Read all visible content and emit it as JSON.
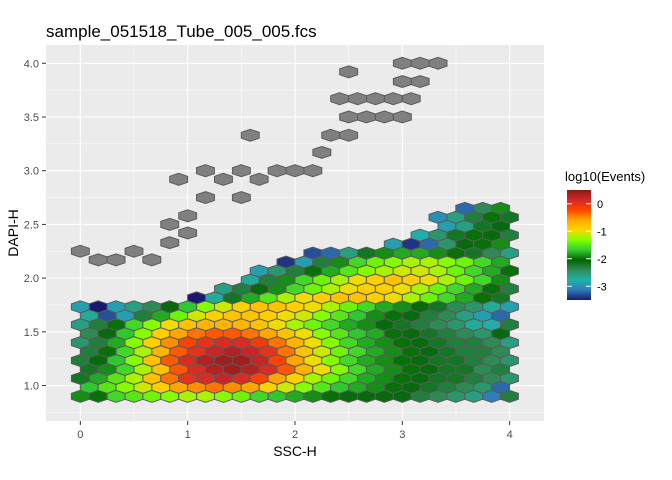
{
  "chart_data": {
    "type": "hexbin",
    "title": "sample_051518_Tube_005_005.fcs",
    "xlabel": "SSC-H",
    "ylabel": "DAPI-H",
    "xlim": [
      -0.32,
      4.32
    ],
    "ylim": [
      0.67,
      4.17
    ],
    "x_ticks": [
      0,
      1,
      2,
      3,
      4
    ],
    "x_tick_labels": [
      "0",
      "1",
      "2",
      "3",
      "4"
    ],
    "y_ticks": [
      1.0,
      1.5,
      2.0,
      2.5,
      3.0,
      3.5,
      4.0
    ],
    "y_tick_labels": [
      "1.0",
      "1.5",
      "2.0",
      "2.5",
      "3.0",
      "3.5",
      "4.0"
    ],
    "grid": true,
    "legend": {
      "title": "log10(Events)",
      "position": "right",
      "range": [
        -3.5,
        0.5
      ],
      "ticks": [
        0,
        -1,
        -2,
        -3
      ],
      "tick_labels": [
        "0",
        "-1",
        "-2",
        "-3"
      ],
      "colors": [
        "#191970",
        "#2e7bb8",
        "#20b2aa",
        "#2e8b57",
        "#006400",
        "#32cd32",
        "#7fff00",
        "#ffd700",
        "#ffa500",
        "#ff4500",
        "#d42828",
        "#8b1a1a"
      ],
      "below_range_color": "#808080"
    },
    "hex_grid": {
      "x0": 0.0,
      "dx": 0.1666,
      "y0": 0.9,
      "dy": 0.0833,
      "rows_note": "each row: r = row index (y = y0 + r*dy); odd rows offset by dx/2; values are log10(Events) per hexagon from the first column c0; null = outside range (grey)"
    },
    "rows": [
      {
        "r": 0,
        "c0": 0,
        "v": [
          -1.9,
          -2.0,
          -1.6,
          -1.5,
          -1.4,
          -1.3,
          -1.2,
          -1.2,
          -1.3,
          -1.4,
          -1.6,
          -1.7,
          -1.8,
          -1.9,
          -2.0,
          -2.1,
          -2.1,
          -2.1,
          -2.1,
          -2.3,
          -2.4,
          -2.5,
          -2.6,
          -3.1,
          -2.3
        ]
      },
      {
        "r": 1,
        "c0": 0,
        "v": [
          -1.7,
          -1.5,
          -1.3,
          -1.1,
          -0.9,
          -0.6,
          -0.5,
          -0.4,
          -0.5,
          -0.6,
          -0.9,
          -1.1,
          -1.3,
          -1.5,
          -1.7,
          -1.8,
          -1.9,
          -2.0,
          -2.1,
          -2.2,
          -2.3,
          -2.4,
          -2.5,
          -3.2
        ]
      },
      {
        "r": 2,
        "c0": 0,
        "v": [
          -2.2,
          -1.8,
          -1.5,
          -1.2,
          -0.8,
          -0.4,
          0.0,
          0.1,
          0.2,
          0.1,
          -0.2,
          -0.6,
          -0.9,
          -1.2,
          -1.4,
          -1.6,
          -1.8,
          -1.9,
          -2.0,
          -2.1,
          -2.2,
          -2.2,
          -2.3,
          -2.4,
          -2.5
        ]
      },
      {
        "r": 3,
        "c0": 0,
        "v": [
          -2.2,
          -1.9,
          -1.6,
          -1.2,
          -0.8,
          -0.3,
          0.1,
          0.3,
          0.4,
          0.3,
          0.1,
          -0.3,
          -0.7,
          -1.0,
          -1.3,
          -1.6,
          -1.8,
          -1.9,
          -2.0,
          -2.1,
          -2.2,
          -2.2,
          -2.4,
          -2.3
        ]
      },
      {
        "r": 4,
        "c0": 0,
        "v": [
          -2.3,
          -2.1,
          -1.7,
          -1.3,
          -0.8,
          -0.3,
          0.1,
          0.3,
          0.4,
          0.4,
          0.2,
          -0.2,
          -0.6,
          -1.0,
          -1.3,
          -1.6,
          -1.8,
          -1.9,
          -2.0,
          -2.1,
          -2.2,
          -2.2,
          -2.3,
          -2.4,
          -2.5
        ]
      },
      {
        "r": 5,
        "c0": 0,
        "v": [
          -2.3,
          -2.0,
          -1.6,
          -1.2,
          -0.7,
          -0.3,
          0.0,
          0.2,
          0.3,
          0.2,
          0.0,
          -0.4,
          -0.8,
          -1.1,
          -1.4,
          -1.6,
          -1.8,
          -1.9,
          -2.0,
          -2.1,
          -2.2,
          -2.3,
          -2.3,
          -2.4
        ]
      },
      {
        "r": 6,
        "c0": 0,
        "v": [
          -2.5,
          -2.3,
          -1.8,
          -1.3,
          -0.9,
          -0.5,
          -0.2,
          0.0,
          0.1,
          0.1,
          -0.1,
          -0.4,
          -0.7,
          -1.0,
          -1.3,
          -1.6,
          -1.8,
          -1.9,
          -2.0,
          -2.1,
          -2.2,
          -2.3,
          -2.3,
          -2.4,
          -2.6
        ]
      },
      {
        "r": 7,
        "c0": 0,
        "v": [
          -2.4,
          -2.1,
          -1.7,
          -1.3,
          -0.9,
          -0.6,
          -0.4,
          -0.3,
          -0.3,
          -0.4,
          -0.6,
          -0.8,
          -1.0,
          -1.3,
          -1.5,
          -1.7,
          -1.8,
          -2.0,
          -2.1,
          -2.2,
          -2.3,
          -2.4,
          -2.5,
          -2.1
        ]
      },
      {
        "r": 8,
        "c0": 0,
        "v": [
          -2.6,
          -2.3,
          -2.0,
          -1.6,
          -1.3,
          -1.0,
          -0.8,
          -0.7,
          -0.7,
          -0.7,
          -0.8,
          -1.0,
          -1.2,
          -1.4,
          -1.6,
          -1.8,
          -1.9,
          -2.1,
          -2.2,
          -2.3,
          -2.4,
          -2.5,
          -2.7,
          -2.8,
          -2.3
        ]
      },
      {
        "r": 9,
        "c0": 0,
        "v": [
          -2.7,
          -3.3,
          -2.9,
          -2.3,
          -1.8,
          -1.4,
          -1.1,
          -0.9,
          -0.8,
          -0.8,
          -0.9,
          -1.0,
          -1.1,
          -1.3,
          -1.5,
          -1.7,
          -1.9,
          -2.0,
          -2.1,
          -2.3,
          -2.4,
          -2.6,
          -2.9,
          -3.2
        ]
      },
      {
        "r": 10,
        "c0": 0,
        "v": [
          -2.9,
          -3.5,
          -2.9,
          -2.6,
          -2.4,
          -2.1,
          -1.7,
          -1.3,
          -1.1,
          -0.9,
          -0.8,
          -0.8,
          -0.9,
          -1.0,
          -1.2,
          -1.4,
          -1.6,
          -1.8,
          -1.9,
          -2.1,
          -2.2,
          -2.4,
          -2.5,
          -2.7,
          -2.9
        ]
      },
      {
        "r": 11,
        "c0": 0,
        "v": [
          null,
          null,
          null,
          null,
          null,
          null,
          -3.5,
          -2.7,
          -2.2,
          -1.8,
          -1.5,
          -1.2,
          -1.0,
          -0.9,
          -0.8,
          -0.8,
          -0.9,
          -1.0,
          -1.2,
          -1.4,
          -1.6,
          -1.8,
          -2.0,
          -2.2
        ]
      },
      {
        "r": 12,
        "c0": 0,
        "v": [
          null,
          null,
          null,
          null,
          null,
          null,
          null,
          null,
          -2.6,
          -2.3,
          -2.1,
          -1.9,
          -1.6,
          -1.4,
          -1.2,
          -1.0,
          -0.9,
          -0.9,
          -1.0,
          -1.2,
          -1.4,
          -1.6,
          -1.8,
          -2.0,
          -2.3
        ]
      },
      {
        "r": 13,
        "c0": 0,
        "v": [
          null,
          null,
          null,
          null,
          null,
          null,
          null,
          null,
          null,
          -2.7,
          -2.3,
          -1.9,
          -1.6,
          -1.4,
          -1.2,
          -1.0,
          -0.9,
          -0.8,
          -0.9,
          -1.0,
          -1.2,
          -1.4,
          -1.6,
          -1.9
        ]
      },
      {
        "r": 14,
        "c0": 0,
        "v": [
          null,
          null,
          null,
          null,
          null,
          null,
          null,
          null,
          null,
          null,
          -2.9,
          -2.5,
          -2.3,
          -2.0,
          -1.8,
          -1.5,
          -1.3,
          -1.2,
          -1.1,
          -1.1,
          -1.2,
          -1.4,
          -1.6,
          -1.8,
          -2.0
        ]
      },
      {
        "r": 15,
        "c0": 0,
        "v": [
          null,
          null,
          null,
          null,
          null,
          null,
          null,
          null,
          null,
          null,
          null,
          -3.4,
          -2.9,
          -2.3,
          -1.9,
          -1.6,
          -1.4,
          -1.3,
          -1.2,
          -1.2,
          -1.3,
          -1.4,
          -1.6,
          -1.8
        ]
      },
      {
        "r": 16,
        "c0": 0,
        "v": [
          null,
          null,
          null,
          null,
          null,
          null,
          null,
          null,
          null,
          null,
          null,
          null,
          null,
          -3.3,
          -3.2,
          -2.6,
          -2.2,
          -1.9,
          -1.8,
          -1.8,
          -1.9,
          -2.0,
          -2.2,
          -2.4,
          -2.6
        ]
      },
      {
        "r": 17,
        "c0": 0,
        "v": [
          null,
          null,
          null,
          null,
          null,
          null,
          null,
          null,
          null,
          null,
          null,
          null,
          null,
          null,
          null,
          null,
          null,
          -2.9,
          -3.4,
          -3.2,
          -2.5,
          -2.1,
          -2.0,
          -1.9
        ]
      },
      {
        "r": 18,
        "c0": 0,
        "v": [
          null,
          null,
          null,
          null,
          null,
          null,
          null,
          null,
          null,
          null,
          null,
          null,
          null,
          null,
          null,
          null,
          null,
          null,
          null,
          -2.8,
          -2.5,
          -2.2,
          -2.0,
          -2.1,
          -2.3
        ]
      },
      {
        "r": 19,
        "c0": 0,
        "v": [
          null,
          null,
          null,
          null,
          null,
          null,
          null,
          null,
          null,
          null,
          null,
          null,
          null,
          null,
          null,
          null,
          null,
          null,
          null,
          null,
          -2.9,
          -2.6,
          -2.2,
          -2.1
        ]
      },
      {
        "r": 20,
        "c0": 0,
        "v": [
          null,
          null,
          null,
          null,
          null,
          null,
          null,
          null,
          null,
          null,
          null,
          null,
          null,
          null,
          null,
          null,
          null,
          null,
          null,
          null,
          -3.0,
          -2.6,
          -2.3,
          -2.0,
          -2.2
        ]
      },
      {
        "r": 21,
        "c0": 0,
        "v": [
          null,
          null,
          null,
          null,
          null,
          null,
          null,
          null,
          null,
          null,
          null,
          null,
          null,
          null,
          null,
          null,
          null,
          null,
          null,
          null,
          null,
          -3.2,
          -2.4,
          -1.9
        ]
      }
    ],
    "outlier_hexes": [
      {
        "x": 0.0,
        "y": 2.25
      },
      {
        "x": 0.166,
        "y": 2.17
      },
      {
        "x": 0.333,
        "y": 2.17
      },
      {
        "x": 0.5,
        "y": 2.25
      },
      {
        "x": 0.666,
        "y": 2.17
      },
      {
        "x": 0.833,
        "y": 2.33
      },
      {
        "x": 0.833,
        "y": 2.5
      },
      {
        "x": 1.0,
        "y": 2.42
      },
      {
        "x": 1.0,
        "y": 2.58
      },
      {
        "x": 0.916,
        "y": 2.92
      },
      {
        "x": 1.166,
        "y": 2.75
      },
      {
        "x": 1.166,
        "y": 3.0
      },
      {
        "x": 1.333,
        "y": 2.92
      },
      {
        "x": 1.5,
        "y": 3.0
      },
      {
        "x": 1.5,
        "y": 2.75
      },
      {
        "x": 1.583,
        "y": 3.33
      },
      {
        "x": 1.666,
        "y": 2.92
      },
      {
        "x": 1.833,
        "y": 3.0
      },
      {
        "x": 2.0,
        "y": 3.0
      },
      {
        "x": 2.166,
        "y": 3.0
      },
      {
        "x": 2.25,
        "y": 3.17
      },
      {
        "x": 2.333,
        "y": 3.33
      },
      {
        "x": 2.5,
        "y": 3.33
      },
      {
        "x": 2.5,
        "y": 3.5
      },
      {
        "x": 2.416,
        "y": 3.67
      },
      {
        "x": 2.583,
        "y": 3.67
      },
      {
        "x": 2.75,
        "y": 3.67
      },
      {
        "x": 2.5,
        "y": 3.92
      },
      {
        "x": 2.666,
        "y": 3.5
      },
      {
        "x": 2.833,
        "y": 3.5
      },
      {
        "x": 2.916,
        "y": 3.67
      },
      {
        "x": 3.0,
        "y": 3.5
      },
      {
        "x": 3.083,
        "y": 3.67
      },
      {
        "x": 3.166,
        "y": 3.83
      },
      {
        "x": 3.0,
        "y": 4.0
      },
      {
        "x": 3.166,
        "y": 4.0
      },
      {
        "x": 3.333,
        "y": 4.0
      },
      {
        "x": 3.0,
        "y": 3.83
      }
    ]
  }
}
